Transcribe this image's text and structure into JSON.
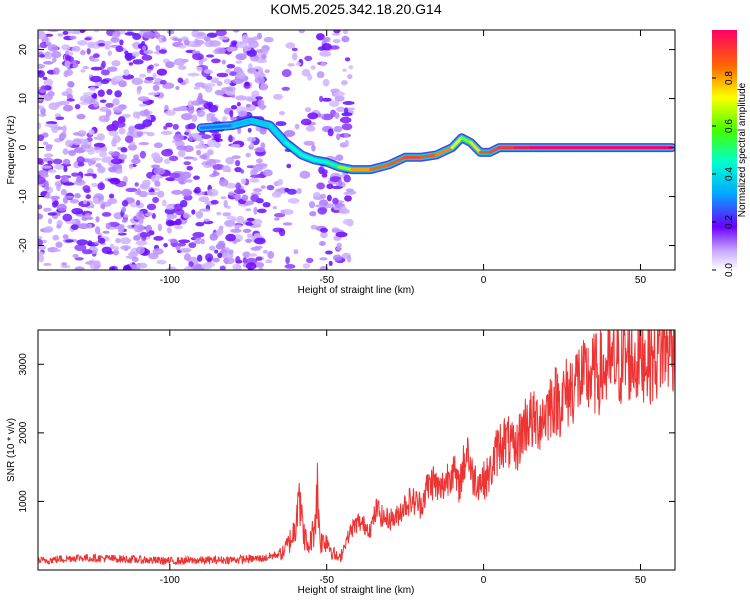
{
  "title": "KOM5.2025.342.18.20.G14",
  "chart_data": [
    {
      "type": "heatmap",
      "title": "KOM5.2025.342.18.20.G14",
      "xlabel": "Height of straight line (km)",
      "ylabel": "Frequency (Hz)",
      "xlim": [
        -142,
        61
      ],
      "ylim": [
        -25,
        24
      ],
      "xticks": [
        -100,
        -50,
        0,
        50
      ],
      "yticks": [
        -20,
        -10,
        0,
        10,
        20
      ],
      "colorbar": {
        "label": "Normalized spectral amplitude",
        "range": [
          0.0,
          1.0
        ],
        "ticks": [
          0.0,
          0.2,
          0.4,
          0.6,
          0.8
        ]
      },
      "ridge": {
        "x": [
          -90,
          -80,
          -74,
          -68,
          -63,
          -58,
          -54,
          -50,
          -46,
          -42,
          -36,
          -30,
          -25,
          -20,
          -15,
          -10,
          -7,
          -4,
          -1,
          2,
          5,
          10,
          15,
          20,
          30,
          40,
          50,
          60
        ],
        "y": [
          4,
          4.5,
          5.5,
          4.5,
          1,
          -1.5,
          -2.5,
          -3,
          -4,
          -4.5,
          -4.5,
          -3.5,
          -2,
          -2,
          -1.5,
          0,
          2,
          1,
          -1,
          -1,
          0,
          0,
          0,
          0,
          0,
          0,
          0,
          0
        ],
        "amplitude": [
          0.25,
          0.3,
          0.4,
          0.35,
          0.45,
          0.45,
          0.45,
          0.45,
          0.55,
          0.75,
          0.85,
          0.85,
          0.9,
          0.9,
          0.85,
          0.8,
          0.6,
          0.65,
          0.85,
          0.9,
          0.9,
          0.95,
          1.0,
          1.0,
          1.0,
          1.0,
          1.0,
          1.0
        ]
      }
    },
    {
      "type": "line",
      "xlabel": "Height of straight line (km)",
      "ylabel": "SNR (10 * v/v)",
      "xlim": [
        -142,
        61
      ],
      "ylim": [
        0,
        3500
      ],
      "xticks": [
        -100,
        -50,
        0,
        50
      ],
      "yticks": [
        1000,
        2000,
        3000
      ],
      "color": "#ee3333",
      "series": [
        {
          "name": "SNR",
          "x": [
            -142,
            -130,
            -120,
            -110,
            -100,
            -90,
            -80,
            -70,
            -64,
            -62,
            -60,
            -59,
            -58,
            -56,
            -54,
            -53,
            -52,
            -50,
            -48,
            -46,
            -44,
            -42,
            -40,
            -38,
            -36,
            -34,
            -32,
            -30,
            -28,
            -26,
            -24,
            -22,
            -20,
            -18,
            -16,
            -14,
            -12,
            -10,
            -8,
            -6,
            -5,
            -4,
            -2,
            0,
            2,
            4,
            6,
            8,
            10,
            12,
            14,
            16,
            18,
            20,
            22,
            24,
            26,
            28,
            30,
            32,
            34,
            36,
            38,
            40,
            42,
            44,
            46,
            48,
            50,
            52,
            54,
            56,
            58,
            60
          ],
          "y": [
            130,
            180,
            170,
            150,
            130,
            140,
            150,
            170,
            250,
            400,
            600,
            1400,
            700,
            300,
            600,
            1200,
            400,
            450,
            250,
            150,
            400,
            600,
            700,
            650,
            600,
            900,
            750,
            750,
            750,
            900,
            1000,
            1000,
            950,
            1200,
            1300,
            1150,
            1300,
            1500,
            1200,
            1600,
            1800,
            1400,
            1300,
            1300,
            1400,
            1700,
            1900,
            1850,
            1700,
            2000,
            2200,
            2150,
            2200,
            2300,
            2500,
            2450,
            2550,
            2650,
            2800,
            2750,
            2850,
            2850,
            2900,
            2950,
            3000,
            3000,
            3100,
            3050,
            3100,
            3150,
            3050,
            3200,
            3250,
            3300
          ]
        }
      ]
    }
  ]
}
